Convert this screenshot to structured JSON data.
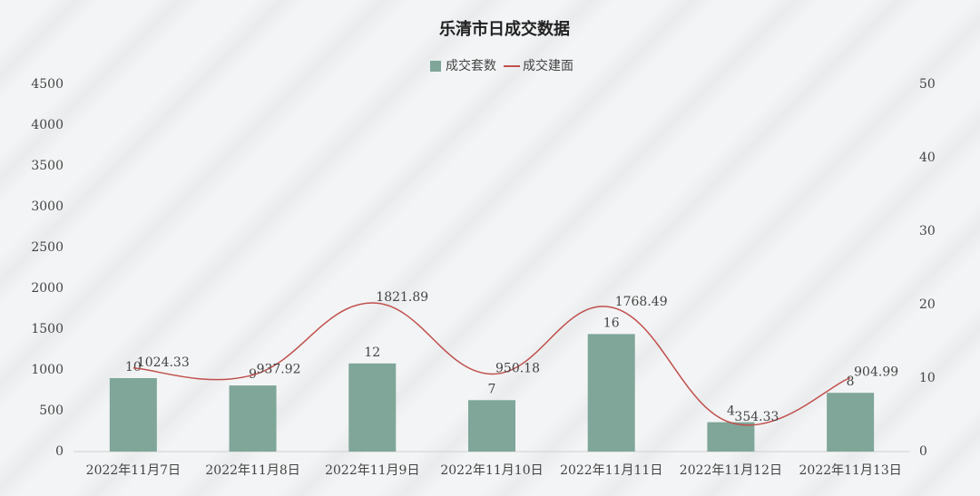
{
  "chart_data": {
    "type": "combo",
    "title": "乐清市日成交数据",
    "categories": [
      "2022年11月7日",
      "2022年11月8日",
      "2022年11月9日",
      "2022年11月10日",
      "2022年11月11日",
      "2022年11月12日",
      "2022年11月13日"
    ],
    "series": [
      {
        "name": "成交套数",
        "type": "bar",
        "axis": "y2",
        "color": "#7fa698",
        "values": [
          10,
          9,
          12,
          7,
          16,
          4,
          8
        ]
      },
      {
        "name": "成交建面",
        "type": "line",
        "color": "#c0504d",
        "values": [
          1024.33,
          937.92,
          1821.89,
          950.18,
          1768.49,
          354.33,
          904.99
        ]
      }
    ],
    "ylim": [
      0,
      4500
    ],
    "yticks": [
      0,
      500,
      1000,
      1500,
      2000,
      2500,
      3000,
      3500,
      4000,
      4500
    ],
    "y2lim": [
      0,
      50
    ],
    "y2ticks": [
      0,
      10,
      20,
      30,
      40,
      50
    ],
    "grid": false,
    "legend": "top"
  }
}
